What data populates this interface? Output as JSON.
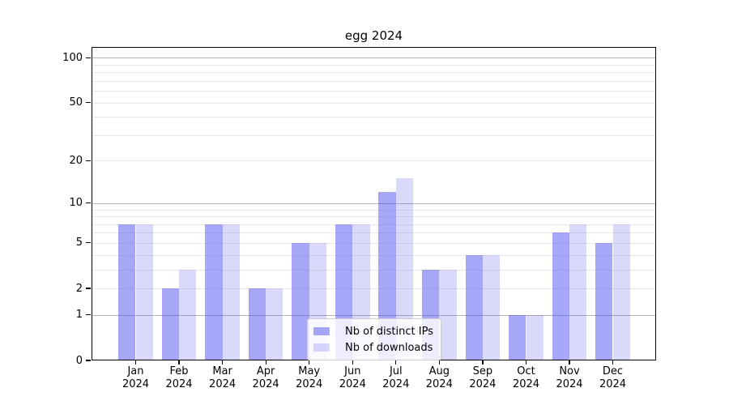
{
  "chart_data": {
    "type": "bar",
    "title": "egg 2024",
    "categories": [
      "Jan",
      "Feb",
      "Mar",
      "Apr",
      "May",
      "Jun",
      "Jul",
      "Aug",
      "Sep",
      "Oct",
      "Nov",
      "Dec"
    ],
    "x_year_label": "2024",
    "series": [
      {
        "name": "Nb of distinct IPs",
        "color": "#a8a8f7",
        "alpha": 0.5,
        "values": [
          7,
          2,
          7,
          2,
          5,
          7,
          12,
          3,
          4,
          1,
          6,
          5
        ]
      },
      {
        "name": "Nb of downloads",
        "color": "#d9d9fb",
        "alpha": 0.22,
        "values": [
          7,
          3,
          7,
          2,
          5,
          7,
          15,
          3,
          4,
          1,
          7,
          7
        ]
      }
    ],
    "bar_base_color": "#5050f0",
    "y_axis": {
      "scale": "log1p",
      "tick_values": [
        0,
        1,
        2,
        5,
        10,
        20,
        50,
        100
      ],
      "major_gridlines": [
        1,
        10,
        100
      ],
      "minor_gridlines": [
        2,
        3,
        4,
        5,
        6,
        7,
        8,
        9,
        20,
        30,
        40,
        50,
        60,
        70,
        80,
        90
      ],
      "range": [
        0,
        118
      ]
    },
    "legend": {
      "position": "bottom-center"
    },
    "colors": {
      "major_grid": "#b4b4b4",
      "minor_grid": "#e9e9e9",
      "axis": "#000000",
      "background": "#ffffff"
    }
  }
}
